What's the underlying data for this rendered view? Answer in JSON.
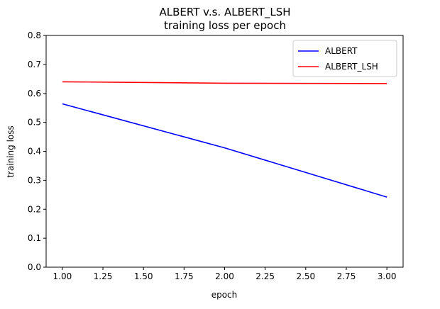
{
  "chart_data": {
    "type": "line",
    "title": "ALBERT v.s. ALBERT_LSH",
    "subtitle": "training loss per epoch",
    "xlabel": "epoch",
    "ylabel": "training loss",
    "xlim": [
      0.9,
      3.1
    ],
    "ylim": [
      0.0,
      0.8
    ],
    "x_ticks": [
      "1.00",
      "1.25",
      "1.50",
      "1.75",
      "2.00",
      "2.25",
      "2.50",
      "2.75",
      "3.00"
    ],
    "y_ticks": [
      "0.0",
      "0.1",
      "0.2",
      "0.3",
      "0.4",
      "0.5",
      "0.6",
      "0.7",
      "0.8"
    ],
    "x": [
      1,
      2,
      3
    ],
    "series": [
      {
        "name": "ALBERT",
        "values": [
          0.564,
          0.412,
          0.242
        ],
        "color": "#0000ff"
      },
      {
        "name": "ALBERT_LSH",
        "values": [
          0.64,
          0.635,
          0.634
        ],
        "color": "#ff0000"
      }
    ],
    "grid": false,
    "legend_position": "top-right"
  }
}
